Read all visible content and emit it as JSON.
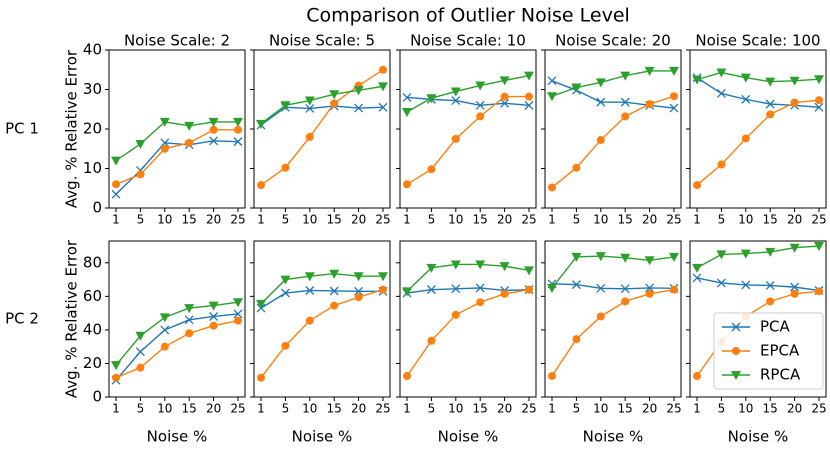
{
  "title": "Comparison of Outlier Noise Level",
  "chart_data": [
    {
      "type": "line",
      "title": "Noise Scale: 2",
      "row_label": "PC 1",
      "ylabel": "Avg. % Relative Error",
      "ylim": [
        0,
        40
      ],
      "yticks": [
        0,
        10,
        20,
        30,
        40
      ],
      "categories": [
        "1",
        "5",
        "10",
        "15",
        "20",
        "25"
      ],
      "series": [
        {
          "color": "#1f77b4",
          "marker": "x",
          "values": [
            3.5,
            9.5,
            16.5,
            16,
            17,
            16.8
          ]
        },
        {
          "color": "#ff7f0e",
          "marker": "o",
          "values": [
            6,
            8.5,
            15,
            16.5,
            19.8,
            19.8
          ]
        },
        {
          "color": "#2ca02c",
          "marker": "v",
          "values": [
            12,
            16.2,
            21.8,
            20.8,
            21.8,
            21.8
          ]
        }
      ]
    },
    {
      "type": "line",
      "title": "Noise Scale: 5",
      "categories": [
        "1",
        "5",
        "10",
        "15",
        "20",
        "25"
      ],
      "series": [
        {
          "color": "#1f77b4",
          "marker": "x",
          "values": [
            21,
            25.5,
            25.2,
            25.8,
            25.3,
            25.5
          ]
        },
        {
          "color": "#ff7f0e",
          "marker": "o",
          "values": [
            5.8,
            10.2,
            18,
            26.5,
            31,
            35
          ]
        },
        {
          "color": "#2ca02c",
          "marker": "v",
          "values": [
            21.3,
            26,
            27.2,
            28.8,
            29.8,
            30.8
          ]
        }
      ]
    },
    {
      "type": "line",
      "title": "Noise Scale: 10",
      "categories": [
        "1",
        "5",
        "10",
        "15",
        "20",
        "25"
      ],
      "series": [
        {
          "color": "#1f77b4",
          "marker": "x",
          "values": [
            28,
            27.5,
            27.2,
            26,
            26.5,
            26
          ]
        },
        {
          "color": "#ff7f0e",
          "marker": "o",
          "values": [
            6,
            9.8,
            17.5,
            23.2,
            28.2,
            28.2
          ]
        },
        {
          "color": "#2ca02c",
          "marker": "v",
          "values": [
            24.3,
            27.8,
            29.5,
            31,
            32.3,
            33.5
          ]
        }
      ]
    },
    {
      "type": "line",
      "title": "Noise Scale: 20",
      "categories": [
        "1",
        "5",
        "10",
        "15",
        "20",
        "25"
      ],
      "series": [
        {
          "color": "#1f77b4",
          "marker": "x",
          "values": [
            32.2,
            29.8,
            26.8,
            26.8,
            26,
            25.3
          ]
        },
        {
          "color": "#ff7f0e",
          "marker": "o",
          "values": [
            5.2,
            10.2,
            17.2,
            23.2,
            26.3,
            28.3
          ]
        },
        {
          "color": "#2ca02c",
          "marker": "v",
          "values": [
            28.3,
            30.5,
            31.8,
            33.5,
            34.7,
            34.7
          ]
        }
      ]
    },
    {
      "type": "line",
      "title": "Noise Scale: 100",
      "categories": [
        "1",
        "5",
        "10",
        "15",
        "20",
        "25"
      ],
      "series": [
        {
          "color": "#1f77b4",
          "marker": "x",
          "values": [
            33,
            29,
            27.5,
            26.3,
            26,
            25.5
          ]
        },
        {
          "color": "#ff7f0e",
          "marker": "o",
          "values": [
            5.8,
            11,
            17.6,
            23.7,
            26.7,
            27.3
          ]
        },
        {
          "color": "#2ca02c",
          "marker": "v",
          "values": [
            32.5,
            34.3,
            33,
            32,
            32.2,
            32.6
          ]
        }
      ]
    },
    {
      "type": "line",
      "row_label": "PC 2",
      "ylabel": "Avg. % Relative Error",
      "xlabel": "Noise %",
      "ylim": [
        0,
        93
      ],
      "yticks": [
        0,
        20,
        40,
        60,
        80
      ],
      "categories": [
        "1",
        "5",
        "10",
        "15",
        "20",
        "25"
      ],
      "series": [
        {
          "color": "#1f77b4",
          "marker": "x",
          "values": [
            10,
            27,
            40,
            46,
            48,
            49.5
          ]
        },
        {
          "color": "#ff7f0e",
          "marker": "o",
          "values": [
            11.5,
            17.5,
            30,
            38,
            42.5,
            45.5
          ]
        },
        {
          "color": "#2ca02c",
          "marker": "v",
          "values": [
            19,
            36.5,
            47.5,
            53,
            54.5,
            56.5
          ]
        }
      ]
    },
    {
      "type": "line",
      "xlabel": "Noise %",
      "categories": [
        "1",
        "5",
        "10",
        "15",
        "20",
        "25"
      ],
      "series": [
        {
          "color": "#1f77b4",
          "marker": "x",
          "values": [
            53,
            62,
            63.5,
            63.2,
            63,
            63
          ]
        },
        {
          "color": "#ff7f0e",
          "marker": "o",
          "values": [
            11.5,
            30.5,
            45.5,
            54.5,
            59.5,
            64
          ]
        },
        {
          "color": "#2ca02c",
          "marker": "v",
          "values": [
            55.5,
            70,
            72,
            73.5,
            72,
            72
          ]
        }
      ]
    },
    {
      "type": "line",
      "xlabel": "Noise %",
      "categories": [
        "1",
        "5",
        "10",
        "15",
        "20",
        "25"
      ],
      "series": [
        {
          "color": "#1f77b4",
          "marker": "x",
          "values": [
            62,
            64,
            64.5,
            65,
            63.5,
            64
          ]
        },
        {
          "color": "#ff7f0e",
          "marker": "o",
          "values": [
            12.5,
            33.5,
            49,
            56.5,
            61.5,
            64
          ]
        },
        {
          "color": "#2ca02c",
          "marker": "v",
          "values": [
            63,
            77,
            79,
            79,
            78,
            75.5
          ]
        }
      ]
    },
    {
      "type": "line",
      "xlabel": "Noise %",
      "categories": [
        "1",
        "5",
        "10",
        "15",
        "20",
        "25"
      ],
      "series": [
        {
          "color": "#1f77b4",
          "marker": "x",
          "values": [
            67.5,
            67,
            64.8,
            64.5,
            65,
            64.8
          ]
        },
        {
          "color": "#ff7f0e",
          "marker": "o",
          "values": [
            12.5,
            34.5,
            48,
            57,
            61.5,
            64
          ]
        },
        {
          "color": "#2ca02c",
          "marker": "v",
          "values": [
            65,
            83.5,
            84,
            83,
            81.5,
            83.5
          ]
        }
      ]
    },
    {
      "type": "line",
      "xlabel": "Noise %",
      "legend": "lower right",
      "categories": [
        "1",
        "5",
        "10",
        "15",
        "20",
        "25"
      ],
      "series": [
        {
          "name": "PCA",
          "color": "#1f77b4",
          "marker": "x",
          "values": [
            71,
            68,
            66.8,
            66.5,
            65.5,
            63.5
          ]
        },
        {
          "name": "EPCA",
          "color": "#ff7f0e",
          "marker": "o",
          "values": [
            12.5,
            33,
            48,
            57,
            61.5,
            63
          ]
        },
        {
          "name": "RPCA",
          "color": "#2ca02c",
          "marker": "v",
          "values": [
            77,
            85,
            85.5,
            86.5,
            89,
            90
          ]
        }
      ]
    }
  ]
}
